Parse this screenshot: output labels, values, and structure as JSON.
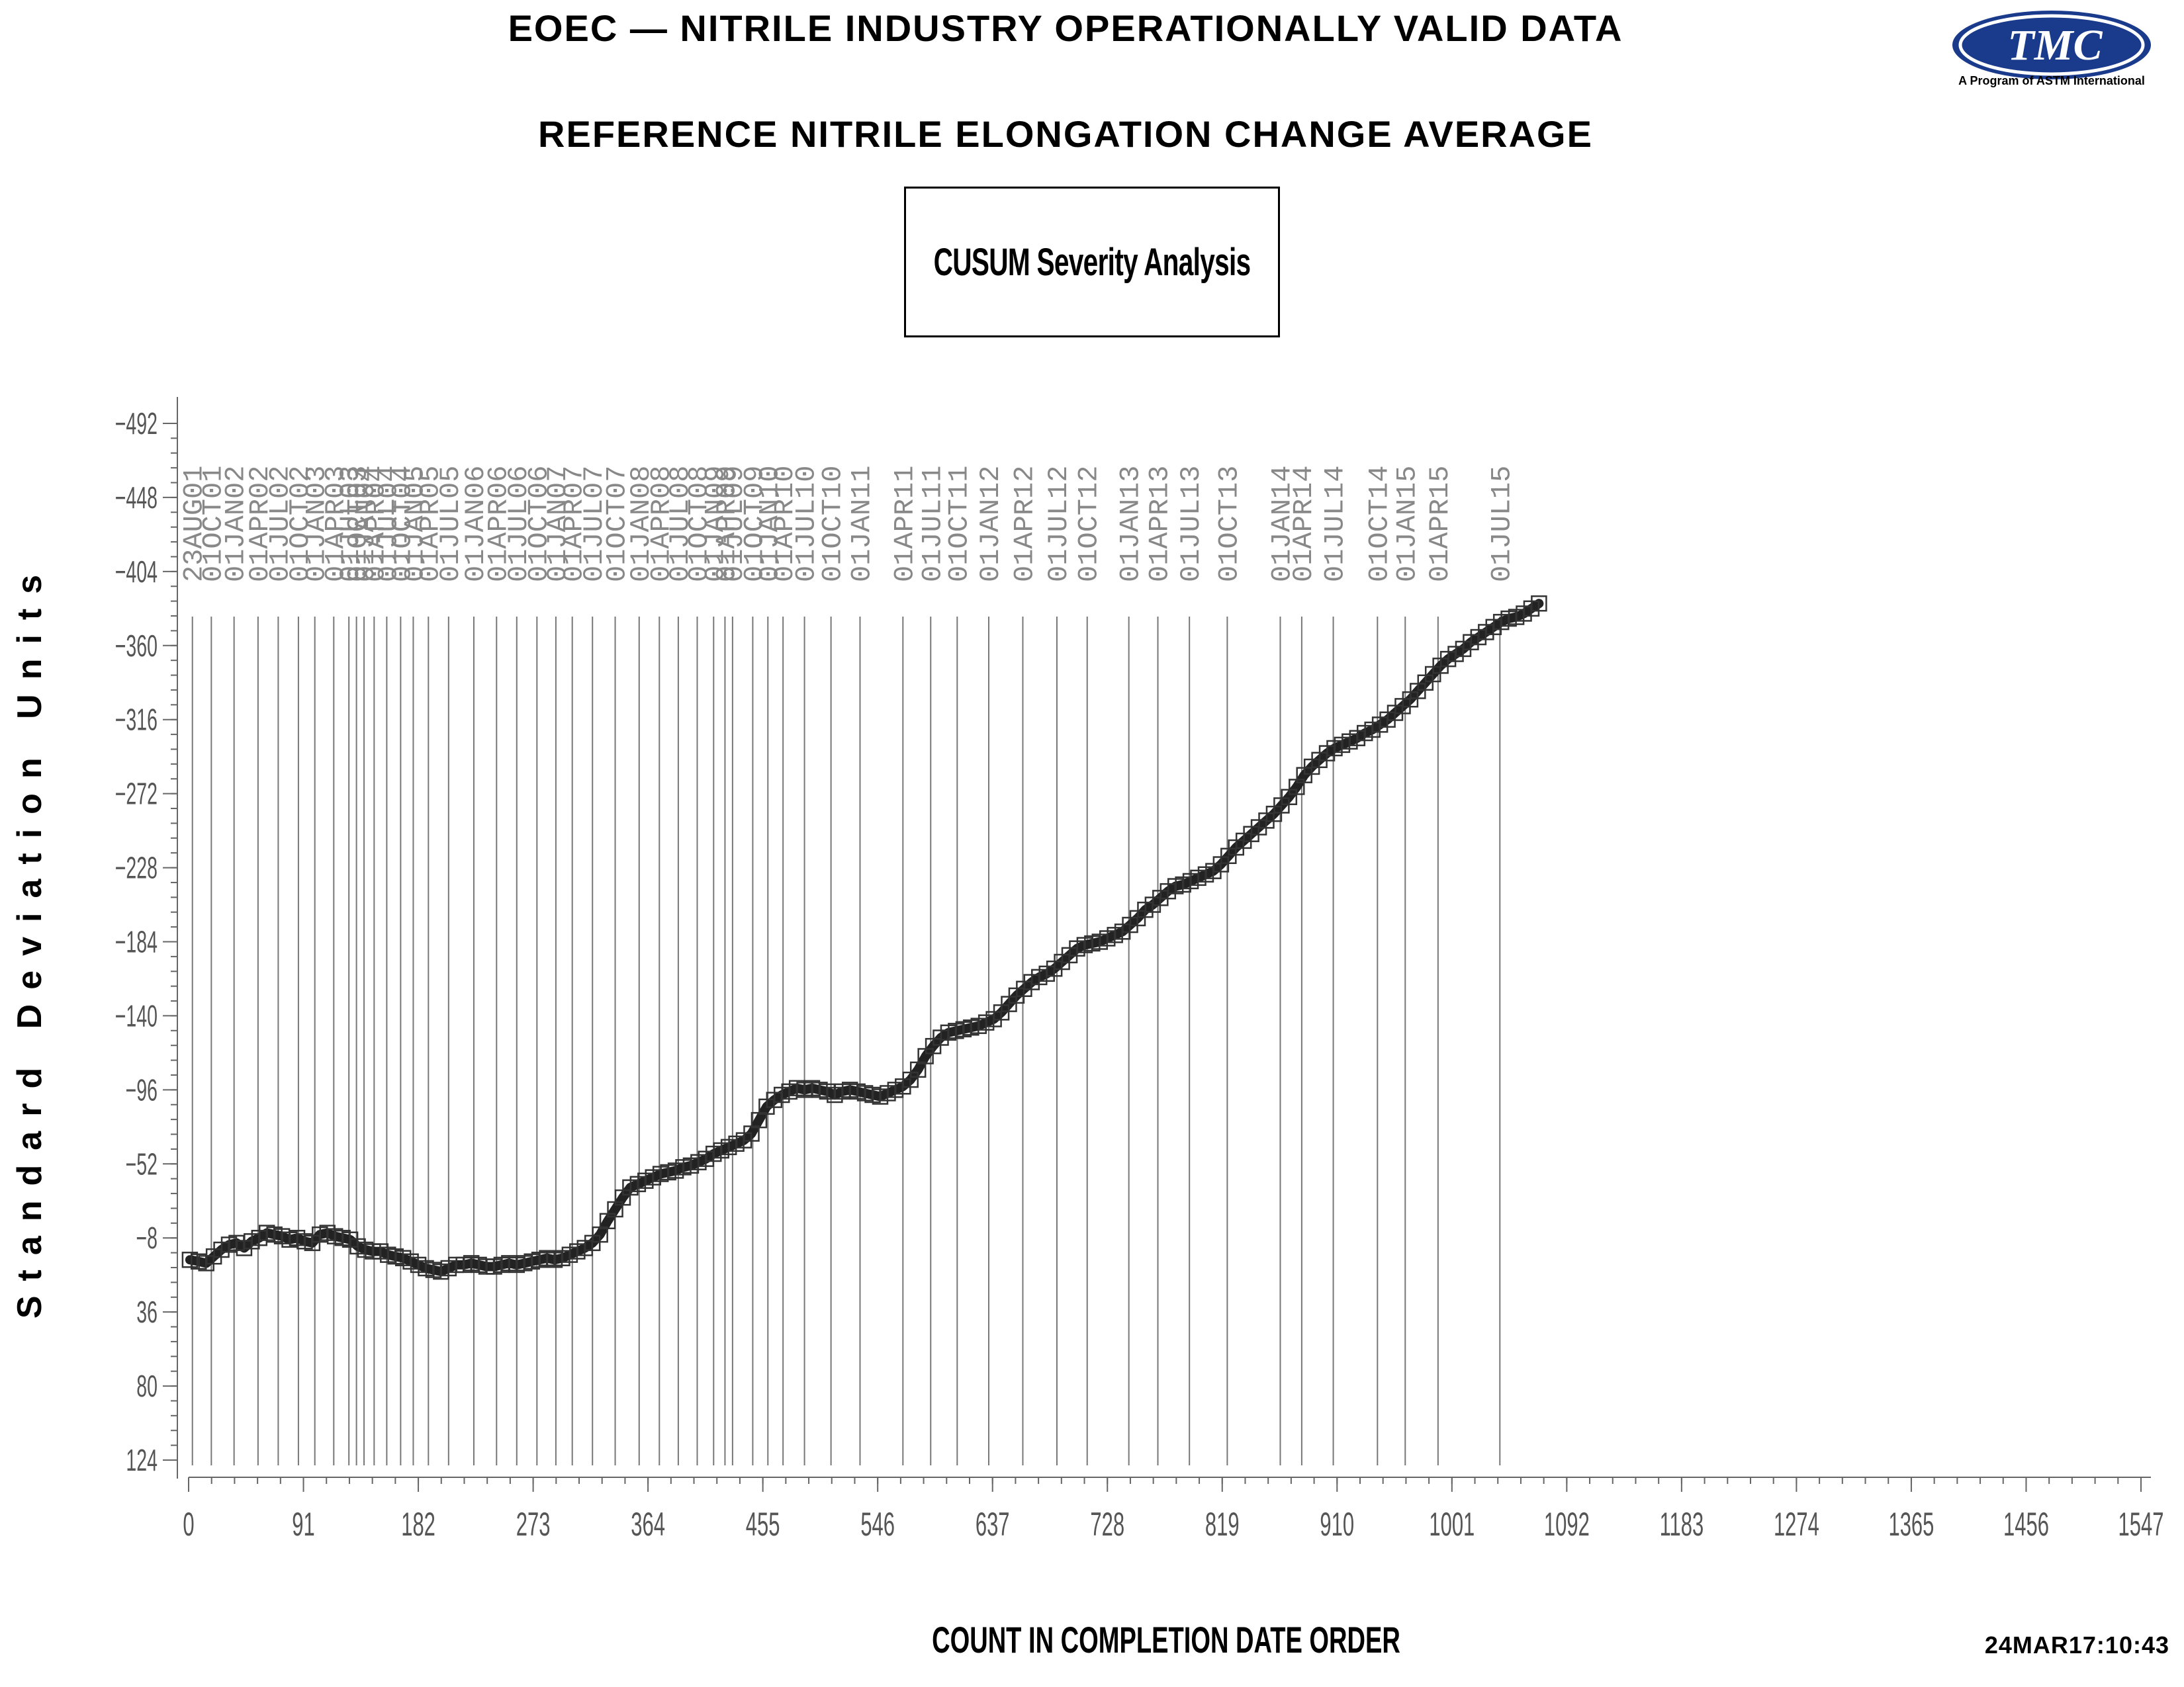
{
  "header": {
    "title": "EOEC — NITRILE INDUSTRY OPERATIONALLY VALID DATA",
    "subtitle": "REFERENCE NITRILE ELONGATION CHANGE AVERAGE",
    "analysis_label": "CUSUM Severity Analysis",
    "logo_text": "TMC",
    "logo_caption": "A Program of ASTM International",
    "timestamp": "24MAR17:10:43"
  },
  "colors": {
    "logo_blue": "#1a3a8c",
    "line": "#222222",
    "axis": "#666666",
    "text": "#000000"
  },
  "chart_data": {
    "type": "line",
    "xlabel": "COUNT IN COMPLETION DATE ORDER",
    "ylabel": "Standard Deviation Units",
    "xlim": [
      0,
      1547
    ],
    "ylim": [
      -492,
      124
    ],
    "y_reversed": true,
    "xticks": [
      0,
      91,
      182,
      273,
      364,
      455,
      546,
      637,
      728,
      819,
      910,
      1001,
      1092,
      1183,
      1274,
      1365,
      1456,
      1547
    ],
    "yticks": [
      -492,
      -448,
      -404,
      -360,
      -316,
      -272,
      -228,
      -184,
      -140,
      -96,
      -52,
      -8,
      36,
      80,
      124
    ],
    "date_markers": [
      {
        "x": 3,
        "label": "23AUG01"
      },
      {
        "x": 18,
        "label": "01OCT01"
      },
      {
        "x": 36,
        "label": "01JAN02"
      },
      {
        "x": 55,
        "label": "01APR02"
      },
      {
        "x": 71,
        "label": "01JUL02"
      },
      {
        "x": 87,
        "label": "01OCT02"
      },
      {
        "x": 100,
        "label": "01JAN03"
      },
      {
        "x": 115,
        "label": "01APR03"
      },
      {
        "x": 127,
        "label": "01JUL03"
      },
      {
        "x": 133,
        "label": "01OCT03"
      },
      {
        "x": 139,
        "label": "01JAN04"
      },
      {
        "x": 147,
        "label": "01APR04"
      },
      {
        "x": 157,
        "label": "01JUL04"
      },
      {
        "x": 168,
        "label": "01OCT04"
      },
      {
        "x": 178,
        "label": "01JAN05"
      },
      {
        "x": 190,
        "label": "01APR05"
      },
      {
        "x": 206,
        "label": "01JUL05"
      },
      {
        "x": 226,
        "label": "01JAN06"
      },
      {
        "x": 244,
        "label": "01APR06"
      },
      {
        "x": 260,
        "label": "01JUL06"
      },
      {
        "x": 276,
        "label": "01OCT06"
      },
      {
        "x": 291,
        "label": "01JAN07"
      },
      {
        "x": 304,
        "label": "01APR07"
      },
      {
        "x": 320,
        "label": "01JUL07"
      },
      {
        "x": 338,
        "label": "01OCT07"
      },
      {
        "x": 357,
        "label": "01JAN08"
      },
      {
        "x": 373,
        "label": "01APR08"
      },
      {
        "x": 388,
        "label": "01JUL08"
      },
      {
        "x": 403,
        "label": "01OCT08"
      },
      {
        "x": 416,
        "label": "01JAN09"
      },
      {
        "x": 425,
        "label": "01APR09"
      },
      {
        "x": 431,
        "label": "01JUL09"
      },
      {
        "x": 447,
        "label": "01OCT09"
      },
      {
        "x": 459,
        "label": "01JAN10"
      },
      {
        "x": 471,
        "label": "01APR10"
      },
      {
        "x": 488,
        "label": "01JUL10"
      },
      {
        "x": 509,
        "label": "01OCT10"
      },
      {
        "x": 532,
        "label": "01JAN11"
      },
      {
        "x": 566,
        "label": "01APR11"
      },
      {
        "x": 588,
        "label": "01JUL11"
      },
      {
        "x": 609,
        "label": "01OCT11"
      },
      {
        "x": 634,
        "label": "01JAN12"
      },
      {
        "x": 661,
        "label": "01APR12"
      },
      {
        "x": 688,
        "label": "01JUL12"
      },
      {
        "x": 712,
        "label": "01OCT12"
      },
      {
        "x": 745,
        "label": "01JAN13"
      },
      {
        "x": 768,
        "label": "01APR13"
      },
      {
        "x": 793,
        "label": "01JUL13"
      },
      {
        "x": 823,
        "label": "01OCT13"
      },
      {
        "x": 865,
        "label": "01JAN14"
      },
      {
        "x": 882,
        "label": "01APR14"
      },
      {
        "x": 907,
        "label": "01JUL14"
      },
      {
        "x": 942,
        "label": "01OCT14"
      },
      {
        "x": 964,
        "label": "01JAN15"
      },
      {
        "x": 990,
        "label": "01APR15"
      },
      {
        "x": 1039,
        "label": "01JUL15"
      }
    ],
    "series": [
      {
        "x": [
          1,
          8,
          14,
          20,
          26,
          32,
          38,
          44,
          50,
          56,
          62,
          68,
          74,
          80,
          86,
          92,
          98,
          104,
          110,
          116,
          122,
          128,
          134,
          140,
          146,
          152,
          158,
          164,
          170,
          176,
          182,
          188,
          194,
          200,
          206,
          212,
          218,
          224,
          230,
          236,
          242,
          248,
          254,
          260,
          266,
          272,
          278,
          284,
          290,
          296,
          302,
          308,
          314,
          320,
          326,
          332,
          338,
          344,
          350,
          356,
          362,
          368,
          374,
          380,
          386,
          392,
          398,
          404,
          410,
          416,
          422,
          428,
          434,
          440,
          446,
          452,
          458,
          464,
          470,
          476,
          482,
          488,
          494,
          500,
          506,
          512,
          518,
          524,
          530,
          536,
          542,
          548,
          554,
          560,
          566,
          572,
          578,
          584,
          590,
          596,
          602,
          608,
          614,
          620,
          626,
          632,
          638,
          644,
          650,
          656,
          662,
          668,
          674,
          680,
          686,
          692,
          698,
          704,
          710,
          716,
          722,
          728,
          734,
          740,
          746,
          752,
          758,
          764,
          770,
          776,
          782,
          788,
          794,
          800,
          806,
          812,
          818,
          824,
          830,
          836,
          842,
          848,
          854,
          860,
          866,
          872,
          878,
          884,
          890,
          896,
          902,
          908,
          914,
          920,
          926,
          932,
          938,
          944,
          950,
          956,
          962,
          968,
          974,
          980,
          986,
          992,
          998,
          1004,
          1010,
          1016,
          1022,
          1028,
          1034,
          1040,
          1046,
          1052,
          1058,
          1064,
          1070
        ],
        "y": [
          5,
          6,
          7,
          3,
          -1,
          -4,
          -5,
          -2,
          -6,
          -8,
          -11,
          -10,
          -9,
          -7,
          -8,
          -6,
          -5,
          -10,
          -11,
          -9,
          -8,
          -7,
          -3,
          -1,
          0,
          0,
          2,
          3,
          4,
          6,
          8,
          10,
          11,
          12,
          10,
          8,
          8,
          7,
          8,
          9,
          9,
          8,
          7,
          8,
          7,
          6,
          5,
          4,
          5,
          4,
          2,
          0,
          -2,
          -5,
          -10,
          -18,
          -25,
          -32,
          -38,
          -40,
          -42,
          -44,
          -46,
          -47,
          -48,
          -50,
          -51,
          -53,
          -55,
          -58,
          -60,
          -62,
          -64,
          -66,
          -70,
          -78,
          -86,
          -90,
          -93,
          -95,
          -97,
          -96,
          -97,
          -96,
          -95,
          -93,
          -95,
          -96,
          -95,
          -94,
          -93,
          -92,
          -94,
          -96,
          -98,
          -102,
          -108,
          -116,
          -122,
          -127,
          -130,
          -131,
          -132,
          -133,
          -134,
          -136,
          -138,
          -142,
          -147,
          -152,
          -156,
          -160,
          -163,
          -165,
          -168,
          -172,
          -176,
          -180,
          -182,
          -183,
          -184,
          -186,
          -188,
          -190,
          -194,
          -198,
          -203,
          -206,
          -210,
          -214,
          -217,
          -218,
          -220,
          -222,
          -224,
          -226,
          -230,
          -235,
          -240,
          -244,
          -248,
          -252,
          -256,
          -260,
          -265,
          -270,
          -276,
          -283,
          -288,
          -292,
          -296,
          -299,
          -301,
          -303,
          -305,
          -308,
          -310,
          -313,
          -316,
          -320,
          -324,
          -328,
          -333,
          -338,
          -343,
          -348,
          -352,
          -355,
          -358,
          -362,
          -365,
          -368,
          -371,
          -374,
          -376,
          -377,
          -379,
          -382,
          -385
        ]
      }
    ]
  }
}
